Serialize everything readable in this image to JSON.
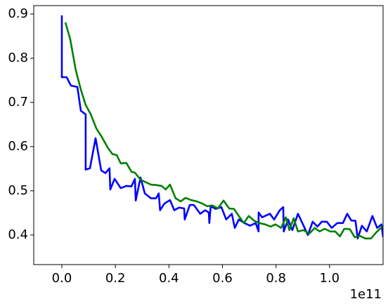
{
  "chart_data": {
    "type": "line",
    "x_offset_label": "1e11",
    "xlim": [
      -0.105,
      1.2
    ],
    "ylim": [
      0.333,
      0.919
    ],
    "xticks": [
      {
        "value": 0,
        "label": "0.0"
      },
      0.2,
      0.4,
      0.6,
      0.8,
      {
        "value": 1,
        "label": "1.0"
      }
    ],
    "yticks": [
      0.4,
      0.5,
      0.6,
      0.7,
      0.8,
      0.9
    ],
    "grid": false,
    "series": [
      {
        "color": "#0000ff",
        "x": [
          0,
          0,
          0.018,
          0.034,
          0.058,
          0.071,
          0.089,
          0.089,
          0.105,
          0.126,
          0.147,
          0.163,
          0.178,
          0.181,
          0.197,
          0.22,
          0.241,
          0.26,
          0.273,
          0.276,
          0.294,
          0.31,
          0.333,
          0.352,
          0.362,
          0.367,
          0.383,
          0.404,
          0.42,
          0.438,
          0.457,
          0.459,
          0.478,
          0.493,
          0.517,
          0.535,
          0.549,
          0.551,
          0.556,
          0.575,
          0.596,
          0.614,
          0.635,
          0.646,
          0.661,
          0.682,
          0.703,
          0.724,
          0.735,
          0.735,
          0.748,
          0.777,
          0.793,
          0.814,
          0.827,
          0.829,
          0.845,
          0.861,
          0.882,
          0.903,
          0.919,
          0.937,
          0.955,
          0.971,
          0.99,
          1.008,
          1.029,
          1.05,
          1.066,
          1.081,
          1.097,
          1.105,
          1.121,
          1.139,
          1.16,
          1.178,
          1.194,
          1.2
        ],
        "values": [
          0.897,
          0.757,
          0.757,
          0.738,
          0.735,
          0.681,
          0.673,
          0.548,
          0.551,
          0.619,
          0.546,
          0.54,
          0.551,
          0.503,
          0.527,
          0.506,
          0.511,
          0.51,
          0.527,
          0.478,
          0.53,
          0.494,
          0.483,
          0.483,
          0.494,
          0.456,
          0.471,
          0.479,
          0.456,
          0.462,
          0.46,
          0.435,
          0.468,
          0.468,
          0.448,
          0.456,
          0.451,
          0.427,
          0.465,
          0.459,
          0.463,
          0.435,
          0.448,
          0.416,
          0.435,
          0.427,
          0.421,
          0.427,
          0.408,
          0.451,
          0.44,
          0.448,
          0.435,
          0.456,
          0.463,
          0.408,
          0.435,
          0.411,
          0.448,
          0.421,
          0.4,
          0.43,
          0.419,
          0.43,
          0.43,
          0.416,
          0.427,
          0.427,
          0.448,
          0.433,
          0.432,
          0.392,
          0.421,
          0.408,
          0.443,
          0.416,
          0.424,
          0.395
        ]
      },
      {
        "color": "#008000",
        "x": [
          0.013,
          0.031,
          0.052,
          0.071,
          0.089,
          0.108,
          0.129,
          0.15,
          0.171,
          0.189,
          0.205,
          0.22,
          0.241,
          0.26,
          0.273,
          0.294,
          0.315,
          0.333,
          0.352,
          0.373,
          0.388,
          0.404,
          0.425,
          0.444,
          0.462,
          0.483,
          0.504,
          0.525,
          0.543,
          0.562,
          0.583,
          0.604,
          0.625,
          0.643,
          0.661,
          0.68,
          0.698,
          0.719,
          0.738,
          0.759,
          0.78,
          0.798,
          0.819,
          0.837,
          0.85,
          0.866,
          0.882,
          0.903,
          0.924,
          0.945,
          0.963,
          0.982,
          1.003,
          1.021,
          1.039,
          1.055,
          1.076,
          1.094,
          1.113,
          1.134,
          1.155,
          1.173,
          1.197
        ],
        "values": [
          0.881,
          0.844,
          0.773,
          0.729,
          0.694,
          0.673,
          0.641,
          0.621,
          0.598,
          0.583,
          0.581,
          0.562,
          0.563,
          0.543,
          0.541,
          0.525,
          0.519,
          0.514,
          0.513,
          0.511,
          0.503,
          0.514,
          0.483,
          0.476,
          0.484,
          0.479,
          0.476,
          0.471,
          0.465,
          0.467,
          0.46,
          0.478,
          0.46,
          0.459,
          0.443,
          0.427,
          0.443,
          0.432,
          0.427,
          0.424,
          0.419,
          0.424,
          0.416,
          0.44,
          0.411,
          0.438,
          0.408,
          0.411,
          0.403,
          0.416,
          0.408,
          0.414,
          0.408,
          0.408,
          0.397,
          0.414,
          0.413,
          0.395,
          0.398,
          0.392,
          0.392,
          0.405,
          0.419
        ]
      }
    ]
  }
}
